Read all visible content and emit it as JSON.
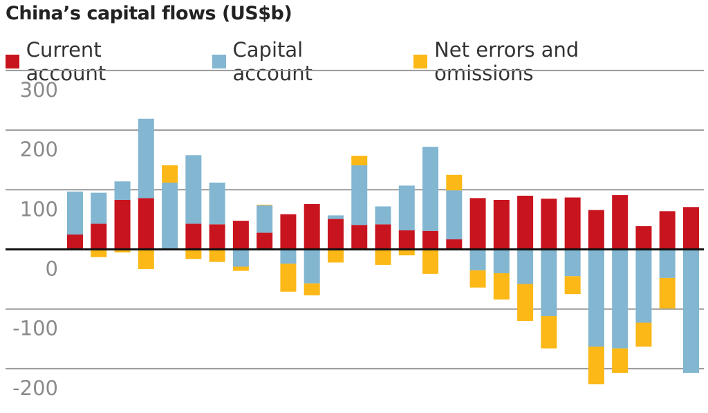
{
  "chart_data": {
    "type": "bar",
    "stacked": true,
    "title": "China’s capital flows (US$b)",
    "xlabel": "",
    "ylabel": "",
    "ylim": [
      -200,
      300
    ],
    "yticks": [
      300,
      200,
      100,
      0,
      -100,
      -200
    ],
    "grid": true,
    "legend_position": "top",
    "series": [
      {
        "name": "Current account",
        "color": "#c8141e",
        "values": [
          25,
          43,
          83,
          86,
          0,
          43,
          42,
          48,
          28,
          59,
          76,
          51,
          41,
          42,
          32,
          31,
          17,
          86,
          83,
          90,
          85,
          87,
          66,
          91,
          39,
          64,
          71
        ]
      },
      {
        "name": "Capital account",
        "color": "#82b6d1",
        "values": [
          72,
          52,
          31,
          133,
          112,
          115,
          70,
          -29,
          46,
          -24,
          -57,
          6,
          100,
          30,
          75,
          141,
          82,
          -35,
          -40,
          -58,
          -112,
          -45,
          -163,
          -166,
          -123,
          -48,
          -207
        ]
      },
      {
        "name": "Net errors and omissions",
        "color": "#fbb816",
        "values": [
          0,
          -13,
          -5,
          -33,
          29,
          -16,
          -21,
          -7,
          1,
          -47,
          -20,
          -22,
          16,
          -26,
          -10,
          -41,
          26,
          -29,
          -44,
          -62,
          -54,
          -30,
          -63,
          -41,
          -40,
          -51,
          0
        ]
      }
    ]
  }
}
